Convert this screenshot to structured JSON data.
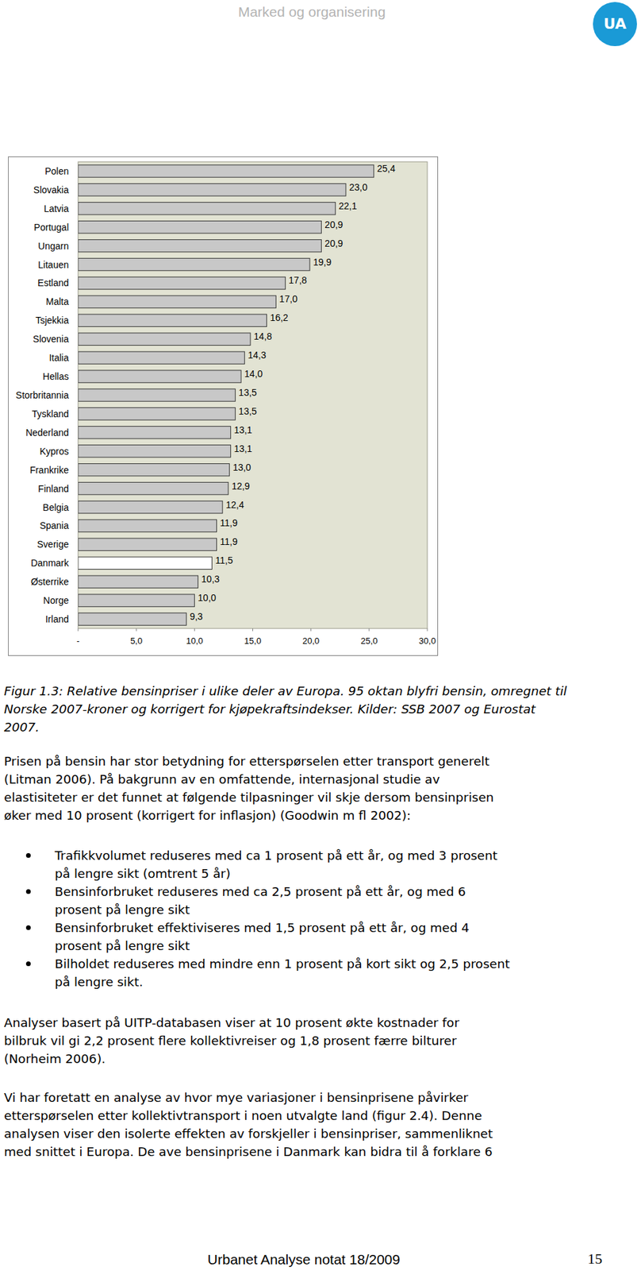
{
  "header": {
    "title": "Marked og organisering",
    "logo": "UA"
  },
  "chart_data": {
    "type": "bar",
    "orientation": "horizontal",
    "categories": [
      "Polen",
      "Slovakia",
      "Latvia",
      "Portugal",
      "Ungarn",
      "Litauen",
      "Estland",
      "Malta",
      "Tsjekkia",
      "Slovenia",
      "Italia",
      "Hellas",
      "Storbritannia",
      "Tyskland",
      "Nederland",
      "Kypros",
      "Frankrike",
      "Finland",
      "Belgia",
      "Spania",
      "Sverige",
      "Danmark",
      "Østerrike",
      "Norge",
      "Irland"
    ],
    "values": [
      25.4,
      23.0,
      22.1,
      20.9,
      20.9,
      19.9,
      17.8,
      17.0,
      16.2,
      14.8,
      14.3,
      14.0,
      13.5,
      13.5,
      13.1,
      13.1,
      13.0,
      12.9,
      12.4,
      11.9,
      11.9,
      11.5,
      10.3,
      10.0,
      9.3
    ],
    "value_labels": [
      "25,4",
      "23,0",
      "22,1",
      "20,9",
      "20,9",
      "19,9",
      "17,8",
      "17,0",
      "16,2",
      "14,8",
      "14,3",
      "14,0",
      "13,5",
      "13,5",
      "13,1",
      "13,1",
      "13,0",
      "12,9",
      "12,4",
      "11,9",
      "11,9",
      "11,5",
      "10,3",
      "10,0",
      "9,3"
    ],
    "colors": [
      "#c8c8c8",
      "#c8c8c8",
      "#c8c8c8",
      "#c8c8c8",
      "#c8c8c8",
      "#c8c8c8",
      "#c8c8c8",
      "#c8c8c8",
      "#c8c8c8",
      "#c8c8c8",
      "#c8c8c8",
      "#c8c8c8",
      "#c8c8c8",
      "#c8c8c8",
      "#c8c8c8",
      "#c8c8c8",
      "#c8c8c8",
      "#c8c8c8",
      "#c8c8c8",
      "#c8c8c8",
      "#c8c8c8",
      "#ffffff",
      "#c8c8c8",
      "#c8c8c8",
      "#c8c8c8"
    ],
    "xlim": [
      0,
      30
    ],
    "xticks": [
      {
        "value": 0,
        "label": "-"
      },
      {
        "value": 5,
        "label": "5,0"
      },
      {
        "value": 10,
        "label": "10,0"
      },
      {
        "value": 15,
        "label": "15,0"
      },
      {
        "value": 20,
        "label": "20,0"
      },
      {
        "value": 25,
        "label": "25,0"
      },
      {
        "value": 30,
        "label": "30,0"
      }
    ],
    "data_labels": true,
    "grid": false
  },
  "caption": {
    "lines": [
      "Figur 1.3: Relative bensinpriser i ulike deler av Europa. 95 oktan blyfri bensin, omregnet til",
      "Norske 2007-kroner og korrigert for kjøpekraftsindekser. Kilder: SSB 2007 og Eurostat",
      "2007."
    ]
  },
  "paragraphs": [
    {
      "lines": [
        "Prisen på bensin har stor betydning for etterspørselen etter transport generelt",
        "(Litman 2006). På bakgrunn av en omfattende, internasjonal studie av",
        "elastisiteter er det funnet at følgende tilpasninger vil skje dersom bensinprisen",
        "øker med 10 prosent (korrigert for inflasjon) (Goodwin m fl 2002):"
      ]
    },
    {
      "lines": [
        "Analyser basert på UITP-databasen viser at 10 prosent økte kostnader for",
        "bilbruk vil gi 2,2 prosent flere kollektivreiser og 1,8 prosent færre bilturer",
        "(Norheim 2006)."
      ]
    },
    {
      "lines": [
        "Vi har foretatt en analyse av hvor mye variasjoner i bensinprisene påvirker",
        "etterspørselen etter kollektivtransport i noen utvalgte land (figur 2.4). Denne",
        "analysen viser den isolerte effekten av forskjeller i bensinpriser, sammenliknet",
        "med snittet i Europa. De ave bensinprisene i Danmark kan bidra til å forklare 6"
      ]
    }
  ],
  "bullets": [
    {
      "lines": [
        "Trafikkvolumet reduseres med ca 1 prosent på ett år, og med 3 prosent",
        "på lengre sikt (omtrent 5 år)"
      ]
    },
    {
      "lines": [
        "Bensinforbruket reduseres med ca 2,5 prosent på ett år, og med 6",
        "prosent på lengre sikt"
      ]
    },
    {
      "lines": [
        "Bensinforbruket effektiviseres med 1,5 prosent på ett år, og med 4",
        "prosent på lengre sikt"
      ]
    },
    {
      "lines": [
        "Bilholdet reduseres med mindre enn 1 prosent på kort sikt og 2,5 prosent",
        "på lengre sikt."
      ]
    }
  ],
  "footer": {
    "text": "Urbanet Analyse notat 18/2009",
    "page": "15"
  }
}
